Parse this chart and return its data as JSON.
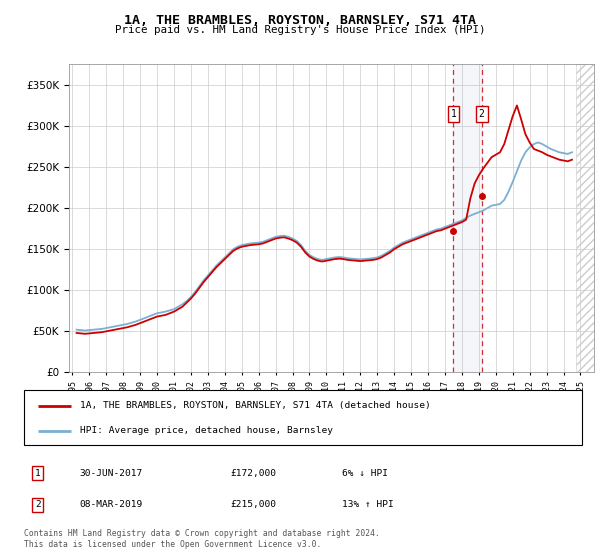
{
  "title": "1A, THE BRAMBLES, ROYSTON, BARNSLEY, S71 4TA",
  "subtitle": "Price paid vs. HM Land Registry's House Price Index (HPI)",
  "legend_line1": "1A, THE BRAMBLES, ROYSTON, BARNSLEY, S71 4TA (detached house)",
  "legend_line2": "HPI: Average price, detached house, Barnsley",
  "transaction1_label": "1",
  "transaction1_date": "30-JUN-2017",
  "transaction1_price": "£172,000",
  "transaction1_pct": "6% ↓ HPI",
  "transaction2_label": "2",
  "transaction2_date": "08-MAR-2019",
  "transaction2_price": "£215,000",
  "transaction2_pct": "13% ↑ HPI",
  "footer": "Contains HM Land Registry data © Crown copyright and database right 2024.\nThis data is licensed under the Open Government Licence v3.0.",
  "hpi_color": "#7bafd4",
  "price_color": "#cc0000",
  "marker1_x": 2017.5,
  "marker1_y": 172000,
  "marker2_x": 2019.17,
  "marker2_y": 215000,
  "hatch_start": 2024.75,
  "ylim": [
    0,
    375000
  ],
  "xlim_start": 1994.8,
  "xlim_end": 2025.8,
  "yticks": [
    0,
    50000,
    100000,
    150000,
    200000,
    250000,
    300000,
    350000
  ],
  "xticks": [
    1995,
    1996,
    1997,
    1998,
    1999,
    2000,
    2001,
    2002,
    2003,
    2004,
    2005,
    2006,
    2007,
    2008,
    2009,
    2010,
    2011,
    2012,
    2013,
    2014,
    2015,
    2016,
    2017,
    2018,
    2019,
    2020,
    2021,
    2022,
    2023,
    2024,
    2025
  ],
  "hpi_data_years": [
    1995.25,
    1995.5,
    1995.75,
    1996.0,
    1996.25,
    1996.5,
    1996.75,
    1997.0,
    1997.25,
    1997.5,
    1997.75,
    1998.0,
    1998.25,
    1998.5,
    1998.75,
    1999.0,
    1999.25,
    1999.5,
    1999.75,
    2000.0,
    2000.25,
    2000.5,
    2000.75,
    2001.0,
    2001.25,
    2001.5,
    2001.75,
    2002.0,
    2002.25,
    2002.5,
    2002.75,
    2003.0,
    2003.25,
    2003.5,
    2003.75,
    2004.0,
    2004.25,
    2004.5,
    2004.75,
    2005.0,
    2005.25,
    2005.5,
    2005.75,
    2006.0,
    2006.25,
    2006.5,
    2006.75,
    2007.0,
    2007.25,
    2007.5,
    2007.75,
    2008.0,
    2008.25,
    2008.5,
    2008.75,
    2009.0,
    2009.25,
    2009.5,
    2009.75,
    2010.0,
    2010.25,
    2010.5,
    2010.75,
    2011.0,
    2011.25,
    2011.5,
    2011.75,
    2012.0,
    2012.25,
    2012.5,
    2012.75,
    2013.0,
    2013.25,
    2013.5,
    2013.75,
    2014.0,
    2014.25,
    2014.5,
    2014.75,
    2015.0,
    2015.25,
    2015.5,
    2015.75,
    2016.0,
    2016.25,
    2016.5,
    2016.75,
    2017.0,
    2017.25,
    2017.5,
    2017.75,
    2018.0,
    2018.25,
    2018.5,
    2018.75,
    2019.0,
    2019.25,
    2019.5,
    2019.75,
    2020.0,
    2020.25,
    2020.5,
    2020.75,
    2021.0,
    2021.25,
    2021.5,
    2021.75,
    2022.0,
    2022.25,
    2022.5,
    2022.75,
    2023.0,
    2023.25,
    2023.5,
    2023.75,
    2024.0,
    2024.25,
    2024.5
  ],
  "hpi_data_values": [
    52000,
    51500,
    51000,
    51500,
    52000,
    52500,
    53000,
    54000,
    55000,
    56000,
    57000,
    58000,
    59000,
    60500,
    62000,
    64000,
    66000,
    68000,
    70000,
    72000,
    73000,
    74000,
    75500,
    77000,
    80000,
    83000,
    87000,
    92000,
    98000,
    105000,
    112000,
    118000,
    124000,
    130000,
    135000,
    140000,
    145000,
    150000,
    153000,
    155000,
    156000,
    157000,
    157500,
    158000,
    159000,
    161000,
    163000,
    165000,
    166000,
    166500,
    165000,
    163000,
    160000,
    155000,
    148000,
    143000,
    140000,
    138000,
    137000,
    138000,
    139000,
    140000,
    140500,
    140000,
    139000,
    138500,
    138000,
    137500,
    138000,
    138500,
    139000,
    140000,
    142000,
    145000,
    148000,
    152000,
    155000,
    158000,
    160000,
    162000,
    164000,
    166000,
    168000,
    170000,
    172000,
    174000,
    175000,
    177000,
    179000,
    181000,
    183000,
    185000,
    188000,
    191000,
    193000,
    195000,
    197000,
    200000,
    203000,
    204000,
    205000,
    210000,
    220000,
    232000,
    245000,
    258000,
    268000,
    274000,
    278000,
    280000,
    278000,
    275000,
    272000,
    270000,
    268000,
    267000,
    266000,
    268000
  ],
  "price_data_years": [
    1995.25,
    1995.5,
    1995.75,
    1996.0,
    1996.25,
    1996.5,
    1996.75,
    1997.0,
    1997.25,
    1997.5,
    1997.75,
    1998.0,
    1998.25,
    1998.5,
    1998.75,
    1999.0,
    1999.25,
    1999.5,
    1999.75,
    2000.0,
    2000.25,
    2000.5,
    2000.75,
    2001.0,
    2001.25,
    2001.5,
    2001.75,
    2002.0,
    2002.25,
    2002.5,
    2002.75,
    2003.0,
    2003.25,
    2003.5,
    2003.75,
    2004.0,
    2004.25,
    2004.5,
    2004.75,
    2005.0,
    2005.25,
    2005.5,
    2005.75,
    2006.0,
    2006.25,
    2006.5,
    2006.75,
    2007.0,
    2007.25,
    2007.5,
    2007.75,
    2008.0,
    2008.25,
    2008.5,
    2008.75,
    2009.0,
    2009.25,
    2009.5,
    2009.75,
    2010.0,
    2010.25,
    2010.5,
    2010.75,
    2011.0,
    2011.25,
    2011.5,
    2011.75,
    2012.0,
    2012.25,
    2012.5,
    2012.75,
    2013.0,
    2013.25,
    2013.5,
    2013.75,
    2014.0,
    2014.25,
    2014.5,
    2014.75,
    2015.0,
    2015.25,
    2015.5,
    2015.75,
    2016.0,
    2016.25,
    2016.5,
    2016.75,
    2017.0,
    2017.25,
    2017.5,
    2017.75,
    2018.0,
    2018.25,
    2018.5,
    2018.75,
    2019.0,
    2019.25,
    2019.5,
    2019.75,
    2020.0,
    2020.25,
    2020.5,
    2020.75,
    2021.0,
    2021.25,
    2021.5,
    2021.75,
    2022.0,
    2022.25,
    2022.5,
    2022.75,
    2023.0,
    2023.25,
    2023.5,
    2023.75,
    2024.0,
    2024.25,
    2024.5
  ],
  "price_data_values": [
    48000,
    47500,
    47000,
    47500,
    48000,
    48500,
    49000,
    50000,
    51000,
    52000,
    53000,
    54000,
    55000,
    56500,
    58000,
    60000,
    62000,
    64000,
    66000,
    68000,
    69000,
    70000,
    72000,
    74000,
    77000,
    80000,
    85000,
    90000,
    96000,
    103000,
    110000,
    116000,
    122000,
    128000,
    133000,
    138000,
    143000,
    148000,
    151000,
    153000,
    154000,
    155000,
    155500,
    156000,
    157000,
    159000,
    161000,
    163000,
    164000,
    164500,
    163000,
    161000,
    158000,
    153000,
    146000,
    141000,
    138000,
    136000,
    135000,
    136000,
    137000,
    138000,
    138500,
    138000,
    137000,
    136500,
    136000,
    135500,
    136000,
    136500,
    137000,
    138000,
    140000,
    143000,
    146000,
    150000,
    153000,
    156000,
    158000,
    160000,
    162000,
    164000,
    166000,
    168000,
    170000,
    172000,
    173000,
    175000,
    177000,
    179000,
    181000,
    183000,
    186000,
    212000,
    230000,
    240000,
    248000,
    255000,
    262000,
    265000,
    268000,
    278000,
    295000,
    312000,
    325000,
    308000,
    290000,
    280000,
    272000,
    270000,
    268000,
    265000,
    263000,
    261000,
    259000,
    258000,
    257000,
    259000
  ]
}
